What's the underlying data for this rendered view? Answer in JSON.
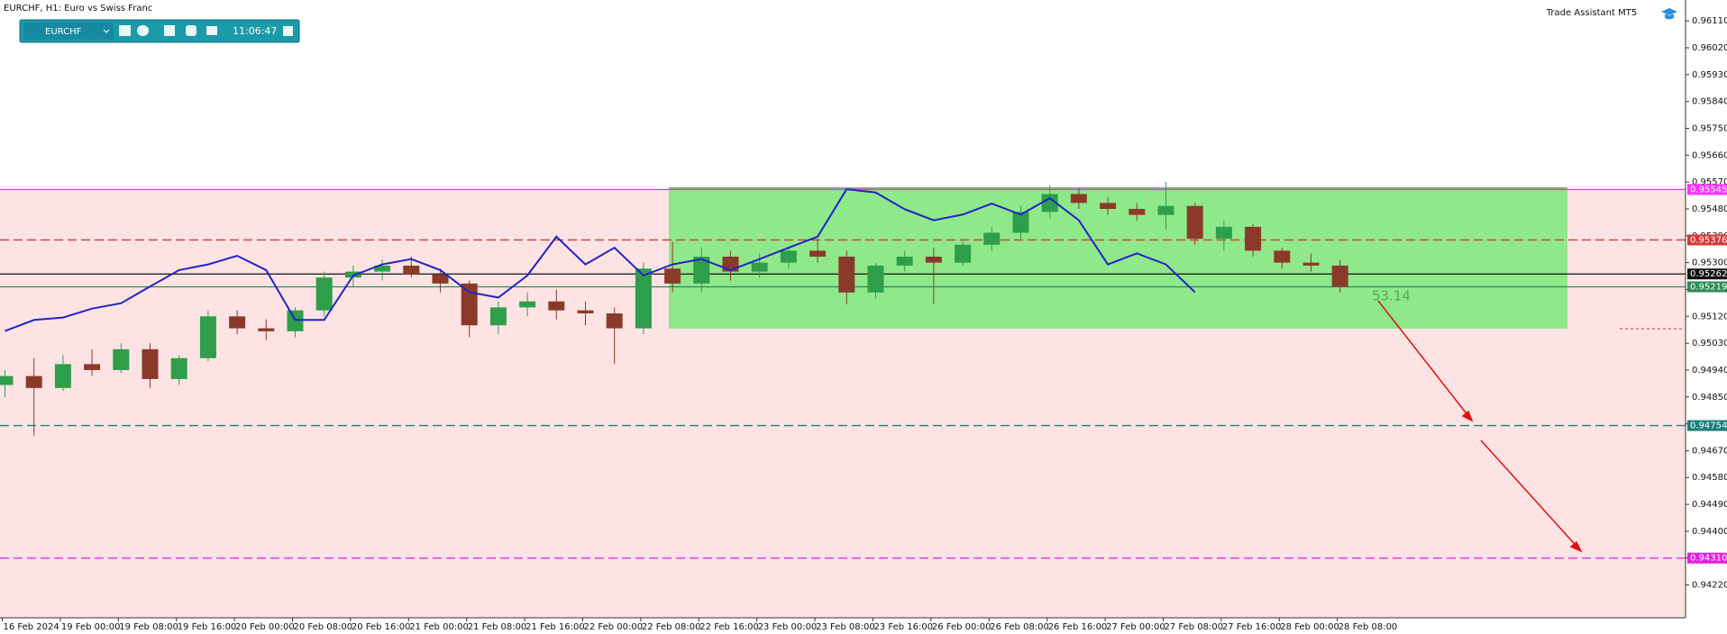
{
  "chart_data": {
    "type": "candlestick",
    "title": "EURCHF, H1:  Euro vs Swiss Franc",
    "symbol": "EURCHF",
    "clock": "11:06:47",
    "assistant": "Trade Assistant MT5",
    "annotation": "53.14",
    "up_color": "#2e9e4a",
    "down_color": "#8b3a2a",
    "categories": [
      "16 Feb 2024",
      null,
      "19 Feb 00:00",
      null,
      "19 Feb 08:00",
      null,
      "19 Feb 16:00",
      null,
      "20 Feb 00:00",
      null,
      "20 Feb 08:00",
      null,
      "20 Feb 16:00",
      null,
      "21 Feb 00:00",
      null,
      "21 Feb 08:00",
      null,
      "21 Feb 16:00",
      null,
      "22 Feb 00:00",
      null,
      "22 Feb 08:00",
      null,
      "22 Feb 16:00",
      null,
      "23 Feb 00:00",
      null,
      "23 Feb 08:00",
      null,
      "23 Feb 16:00",
      null,
      "26 Feb 00:00",
      null,
      "26 Feb 08:00",
      null,
      "26 Feb 16:00",
      null,
      "27 Feb 00:00",
      null,
      "27 Feb 08:00",
      null,
      "27 Feb 16:00",
      null,
      "28 Feb 00:00",
      null,
      "28 Feb 08:00"
    ],
    "open": [
      0.9489,
      0.9492,
      0.9488,
      0.9496,
      0.9494,
      0.9501,
      0.9491,
      0.9498,
      0.9512,
      0.9508,
      0.9507,
      0.9514,
      0.9525,
      0.9527,
      0.9529,
      0.9526,
      0.9523,
      0.9509,
      0.9515,
      0.9517,
      0.9514,
      0.9513,
      0.9508,
      0.9528,
      0.9523,
      0.9532,
      0.9527,
      0.953,
      0.9534,
      0.9532,
      0.952,
      0.9529,
      0.9532,
      0.953,
      0.9536,
      0.954,
      0.9547,
      0.9553,
      0.955,
      0.9548,
      0.9546,
      0.9549,
      0.9538,
      0.9542,
      0.9534,
      0.953,
      0.9529
    ],
    "high": [
      0.9494,
      0.9498,
      0.9499,
      0.9501,
      0.9503,
      0.9503,
      0.9499,
      0.9514,
      0.9514,
      0.9511,
      0.9515,
      0.9527,
      0.9529,
      0.9531,
      0.9532,
      0.9528,
      0.9524,
      0.9517,
      0.952,
      0.9521,
      0.9517,
      0.9515,
      0.953,
      0.9537,
      0.9535,
      0.9534,
      0.9533,
      0.9535,
      0.9538,
      0.9534,
      0.953,
      0.9534,
      0.9535,
      0.9538,
      0.9542,
      0.9549,
      0.9556,
      0.9555,
      0.9552,
      0.955,
      0.9557,
      0.955,
      0.9544,
      0.9543,
      0.9535,
      0.9533,
      0.9531
    ],
    "low": [
      0.9485,
      0.9472,
      0.9487,
      0.9492,
      0.9493,
      0.9488,
      0.9489,
      0.9497,
      0.9506,
      0.9504,
      0.9505,
      0.9512,
      0.9522,
      0.9524,
      0.9525,
      0.952,
      0.9505,
      0.9506,
      0.9512,
      0.9511,
      0.9509,
      0.9496,
      0.9506,
      0.952,
      0.952,
      0.9524,
      0.9525,
      0.9528,
      0.953,
      0.9516,
      0.9518,
      0.9527,
      0.9516,
      0.9529,
      0.9534,
      0.9538,
      0.9545,
      0.9548,
      0.9546,
      0.9544,
      0.9541,
      0.9536,
      0.9534,
      0.9532,
      0.9528,
      0.9527,
      0.952
    ],
    "close": [
      0.9492,
      0.9488,
      0.9496,
      0.9494,
      0.9501,
      0.9491,
      0.9498,
      0.9512,
      0.9508,
      0.9507,
      0.9514,
      0.9525,
      0.9527,
      0.9529,
      0.9526,
      0.9523,
      0.9509,
      0.9515,
      0.9517,
      0.9514,
      0.9513,
      0.9508,
      0.9528,
      0.9523,
      0.9532,
      0.9527,
      0.953,
      0.9534,
      0.9532,
      0.952,
      0.9529,
      0.9532,
      0.953,
      0.9536,
      0.954,
      0.9547,
      0.9553,
      0.955,
      0.9548,
      0.9546,
      0.9549,
      0.9538,
      0.9542,
      0.9534,
      0.953,
      0.9529,
      0.9522
    ],
    "series": [
      {
        "color": "#2323c8",
        "values": [
          0.95071,
          0.95108,
          0.95116,
          0.95146,
          0.95164,
          0.9522,
          0.95275,
          0.95294,
          0.95323,
          0.95275,
          0.95108,
          0.95108,
          0.95257,
          0.95294,
          0.95312,
          0.95275,
          0.95201,
          0.95183,
          0.95257,
          0.95387,
          0.95294,
          0.9535,
          0.95257,
          0.95294,
          0.95312,
          0.95275,
          0.95312,
          0.9535,
          0.95387,
          0.95546,
          0.95535,
          0.95479,
          0.95442,
          0.95461,
          0.95498,
          0.95461,
          0.95516,
          0.95442,
          0.95294,
          0.95331,
          0.95294,
          0.95201,
          null,
          null,
          null,
          null,
          null
        ]
      }
    ],
    "levels": [
      {
        "price": {
          "value": 0.95545,
          "label": "0.95545"
        },
        "color": "#ff33ff",
        "dash": false
      },
      {
        "price": {
          "value": 0.95376,
          "label": "0.95376"
        },
        "color": "#d43a3a",
        "dash": true
      },
      {
        "price": {
          "value": 0.95262,
          "label": "0.95262"
        },
        "color": "#111111",
        "dash": false
      },
      {
        "price": {
          "value": 0.95219,
          "label": "0.95219"
        },
        "color": "#2e8b57",
        "dash": false
      },
      {
        "price": {
          "value": 0.94754,
          "label": "0.94754"
        },
        "color": "#1f7f7f",
        "dash": true
      },
      {
        "price": {
          "value": 0.9431,
          "label": "0.94310"
        },
        "color": "#e020e0",
        "dash": true
      }
    ],
    "ylim": [
      0.9411,
      0.9618
    ],
    "yticks": [
      {
        "value": 0.9611,
        "label": "0.96110"
      },
      {
        "value": 0.9602,
        "label": "0.96020"
      },
      {
        "value": 0.9593,
        "label": "0.95930"
      },
      {
        "value": 0.9584,
        "label": "0.95840"
      },
      {
        "value": 0.9575,
        "label": "0.95750"
      },
      {
        "value": 0.9566,
        "label": "0.95660"
      },
      {
        "value": 0.9557,
        "label": "0.95570"
      },
      {
        "value": 0.9548,
        "label": "0.95480"
      },
      {
        "value": 0.9539,
        "label": "0.95390"
      },
      {
        "value": 0.953,
        "label": "0.95300"
      },
      {
        "value": 0.9521,
        "label": "0.95210"
      },
      {
        "value": 0.9512,
        "label": "0.95120"
      },
      {
        "value": 0.9503,
        "label": "0.95030"
      },
      {
        "value": 0.9494,
        "label": "0.94940"
      },
      {
        "value": 0.9485,
        "label": "0.94850"
      },
      {
        "value": 0.9476,
        "label": "0.94760"
      },
      {
        "value": 0.9467,
        "label": "0.94670"
      },
      {
        "value": 0.9458,
        "label": "0.94580"
      },
      {
        "value": 0.9449,
        "label": "0.94490"
      },
      {
        "value": 0.944,
        "label": "0.94400"
      },
      {
        "value": 0.9431,
        "label": "0.94310"
      },
      {
        "value": 0.9422,
        "label": "0.94220"
      }
    ]
  }
}
